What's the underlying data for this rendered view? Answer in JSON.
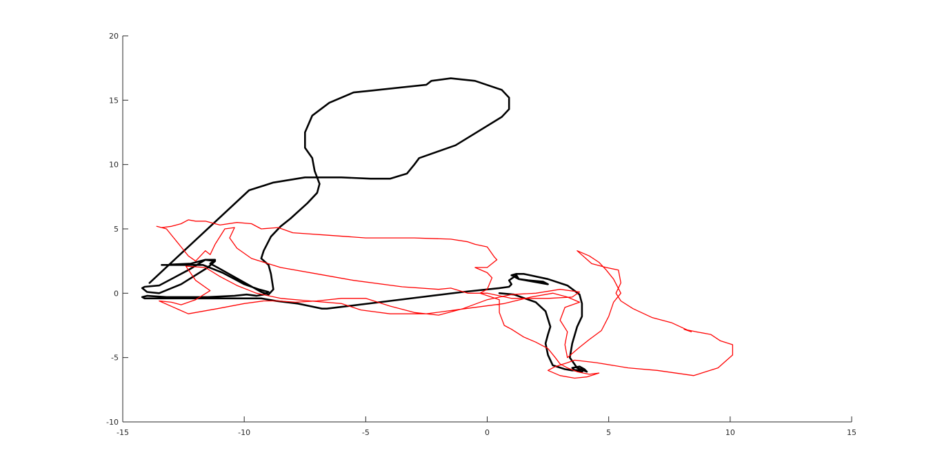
{
  "chart_data": {
    "type": "line",
    "title": "",
    "xlabel": "",
    "ylabel": "",
    "xlim": [
      -15,
      15
    ],
    "ylim": [
      -10,
      20
    ],
    "xticks": [
      -15,
      -10,
      -5,
      0,
      5,
      10,
      15
    ],
    "yticks": [
      -10,
      -5,
      0,
      5,
      10,
      15,
      20
    ],
    "xtick_labels": [
      "-15",
      "-10",
      "-5",
      "0",
      "5",
      "10",
      "15"
    ],
    "ytick_labels": [
      "-10",
      "-5",
      "0",
      "5",
      "10",
      "15",
      "20"
    ],
    "grid": false,
    "legend": "none",
    "series": [
      {
        "color": "#000000",
        "points": [
          [
            -13.9,
            0.8
          ],
          [
            -9.8,
            8.0
          ],
          [
            -8.8,
            8.6
          ],
          [
            -7.5,
            9.0
          ],
          [
            -6.0,
            9.0
          ],
          [
            -4.8,
            8.9
          ],
          [
            -4.0,
            8.9
          ],
          [
            -3.3,
            9.3
          ],
          [
            -3.0,
            10.0
          ],
          [
            -2.8,
            10.5
          ],
          [
            -1.3,
            11.5
          ],
          [
            0.6,
            13.7
          ],
          [
            0.9,
            14.3
          ],
          [
            0.9,
            15.2
          ],
          [
            0.6,
            15.8
          ],
          [
            -0.5,
            16.5
          ],
          [
            -1.5,
            16.7
          ],
          [
            -2.3,
            16.5
          ],
          [
            -2.5,
            16.2
          ],
          [
            -4.5,
            15.8
          ],
          [
            -5.0,
            15.7
          ],
          [
            -5.5,
            15.6
          ],
          [
            -6.5,
            14.8
          ],
          [
            -7.2,
            13.8
          ],
          [
            -7.5,
            12.5
          ],
          [
            -7.5,
            11.3
          ],
          [
            -7.2,
            10.5
          ],
          [
            -7.1,
            9.5
          ],
          [
            -6.9,
            8.5
          ],
          [
            -7.0,
            7.8
          ],
          [
            -7.4,
            7.0
          ],
          [
            -8.1,
            5.8
          ],
          [
            -8.5,
            5.2
          ],
          [
            -8.9,
            4.4
          ],
          [
            -9.2,
            3.3
          ],
          [
            -9.3,
            2.7
          ],
          [
            -9.0,
            2.2
          ],
          [
            -8.9,
            1.5
          ],
          [
            -8.8,
            0.3
          ],
          [
            -9.0,
            -0.1
          ],
          [
            -9.3,
            0.1
          ],
          [
            -11.1,
            2.0
          ],
          [
            -11.4,
            2.3
          ],
          [
            -11.2,
            2.6
          ],
          [
            -11.6,
            2.6
          ],
          [
            -12.3,
            1.8
          ],
          [
            -13.5,
            0.6
          ],
          [
            -14.1,
            0.5
          ],
          [
            -14.2,
            0.4
          ],
          [
            -14.0,
            0.1
          ],
          [
            -13.5,
            0.0
          ],
          [
            -12.6,
            0.7
          ],
          [
            -11.5,
            2.0
          ],
          [
            -11.2,
            2.5
          ],
          [
            -11.6,
            2.6
          ],
          [
            -12.2,
            2.3
          ],
          [
            -13.4,
            2.2
          ],
          [
            -11.7,
            2.2
          ],
          [
            -10.9,
            1.6
          ],
          [
            -10.5,
            1.2
          ],
          [
            -10.0,
            0.7
          ],
          [
            -9.4,
            0.3
          ],
          [
            -9.0,
            0.1
          ],
          [
            -9.2,
            -0.1
          ],
          [
            -9.5,
            -0.2
          ],
          [
            -9.9,
            -0.1
          ],
          [
            -10.4,
            -0.2
          ],
          [
            -11.5,
            -0.3
          ],
          [
            -12.5,
            -0.3
          ],
          [
            -13.2,
            -0.3
          ],
          [
            -14.0,
            -0.2
          ],
          [
            -14.2,
            -0.3
          ],
          [
            -14.1,
            -0.4
          ],
          [
            -13.5,
            -0.4
          ],
          [
            -10.8,
            -0.4
          ],
          [
            -9.5,
            -0.4
          ],
          [
            -9.3,
            -0.4
          ],
          [
            -8.7,
            -0.6
          ],
          [
            -7.8,
            -0.8
          ],
          [
            -7.3,
            -1.0
          ],
          [
            -6.8,
            -1.2
          ],
          [
            -6.6,
            -1.2
          ],
          [
            -4.0,
            -0.6
          ],
          [
            -1.0,
            0.1
          ],
          [
            0.5,
            0.4
          ],
          [
            0.9,
            0.5
          ],
          [
            1.0,
            0.7
          ],
          [
            0.9,
            1.0
          ],
          [
            1.2,
            1.4
          ],
          [
            1.3,
            1.1
          ],
          [
            1.7,
            1.0
          ],
          [
            2.3,
            0.9
          ],
          [
            2.5,
            0.7
          ],
          [
            1.3,
            1.1
          ],
          [
            1.0,
            1.4
          ],
          [
            1.2,
            1.5
          ],
          [
            1.5,
            1.5
          ],
          [
            2.5,
            1.1
          ],
          [
            3.3,
            0.6
          ],
          [
            3.8,
            -0.1
          ],
          [
            3.9,
            -0.8
          ],
          [
            3.9,
            -1.8
          ],
          [
            3.7,
            -2.6
          ],
          [
            3.5,
            -3.9
          ],
          [
            3.4,
            -5.0
          ],
          [
            3.7,
            -5.8
          ],
          [
            4.1,
            -6.1
          ],
          [
            4.0,
            -5.9
          ],
          [
            3.8,
            -5.7
          ],
          [
            3.5,
            -5.8
          ],
          [
            3.6,
            -6.0
          ],
          [
            3.9,
            -6.1
          ],
          [
            4.0,
            -5.9
          ],
          [
            3.5,
            -6.0
          ],
          [
            3.2,
            -5.9
          ],
          [
            2.7,
            -5.6
          ],
          [
            2.5,
            -4.8
          ],
          [
            2.4,
            -3.9
          ],
          [
            2.5,
            -3.2
          ],
          [
            2.6,
            -2.6
          ],
          [
            2.4,
            -1.4
          ],
          [
            2.0,
            -0.7
          ],
          [
            1.1,
            -0.1
          ],
          [
            0.5,
            0.0
          ]
        ]
      },
      {
        "color": "#ff0000",
        "points": [
          [
            -13.4,
            5.1
          ],
          [
            -13.0,
            5.2
          ],
          [
            -12.6,
            5.4
          ],
          [
            -12.3,
            5.7
          ],
          [
            -12.0,
            5.6
          ],
          [
            -11.6,
            5.6
          ],
          [
            -11.0,
            5.3
          ],
          [
            -10.3,
            5.5
          ],
          [
            -9.7,
            5.4
          ],
          [
            -9.3,
            5.0
          ],
          [
            -8.6,
            5.1
          ],
          [
            -8.0,
            4.7
          ],
          [
            -6.5,
            4.5
          ],
          [
            -5.0,
            4.3
          ],
          [
            -3.0,
            4.3
          ],
          [
            -1.5,
            4.2
          ],
          [
            -0.8,
            4.0
          ],
          [
            -0.5,
            3.8
          ],
          [
            0.0,
            3.6
          ],
          [
            0.3,
            2.8
          ],
          [
            0.4,
            2.6
          ],
          [
            0.2,
            2.3
          ],
          [
            0.0,
            2.0
          ],
          [
            -0.5,
            2.0
          ],
          [
            0.0,
            1.6
          ],
          [
            0.2,
            1.2
          ],
          [
            0.0,
            0.3
          ],
          [
            -0.3,
            0.0
          ],
          [
            0.5,
            -0.5
          ],
          [
            0.5,
            -1.5
          ],
          [
            0.7,
            -2.5
          ],
          [
            1.0,
            -2.8
          ],
          [
            1.5,
            -3.4
          ],
          [
            2.0,
            -3.8
          ],
          [
            2.5,
            -4.3
          ],
          [
            2.8,
            -5.0
          ],
          [
            3.0,
            -5.5
          ],
          [
            3.3,
            -5.8
          ],
          [
            3.7,
            -6.1
          ],
          [
            4.2,
            -6.3
          ],
          [
            4.6,
            -6.2
          ],
          [
            4.1,
            -6.5
          ],
          [
            3.6,
            -6.6
          ],
          [
            3.0,
            -6.4
          ],
          [
            2.5,
            -6.0
          ],
          [
            2.8,
            -5.7
          ],
          [
            3.3,
            -5.4
          ],
          [
            3.6,
            -5.2
          ],
          [
            4.5,
            -5.4
          ],
          [
            5.8,
            -5.8
          ],
          [
            7.0,
            -6.0
          ],
          [
            8.5,
            -6.4
          ],
          [
            9.5,
            -5.8
          ],
          [
            10.1,
            -4.8
          ],
          [
            10.1,
            -4.0
          ],
          [
            9.6,
            -3.7
          ],
          [
            9.2,
            -3.2
          ],
          [
            8.6,
            -3.0
          ],
          [
            8.1,
            -2.8
          ],
          [
            8.4,
            -3.0
          ],
          [
            7.6,
            -2.3
          ],
          [
            6.8,
            -1.9
          ],
          [
            6.0,
            -1.2
          ],
          [
            5.5,
            -0.6
          ],
          [
            5.3,
            0.0
          ],
          [
            5.5,
            0.8
          ],
          [
            5.4,
            1.8
          ],
          [
            4.9,
            2.0
          ],
          [
            4.3,
            2.3
          ],
          [
            3.7,
            3.3
          ],
          [
            4.2,
            2.9
          ],
          [
            4.6,
            2.4
          ],
          [
            4.9,
            1.8
          ],
          [
            5.2,
            1.1
          ],
          [
            5.5,
            0.0
          ],
          [
            5.2,
            -0.7
          ],
          [
            5.0,
            -1.8
          ],
          [
            4.7,
            -2.9
          ],
          [
            4.2,
            -3.6
          ],
          [
            3.8,
            -4.2
          ],
          [
            3.3,
            -5.0
          ],
          [
            3.2,
            -4.0
          ],
          [
            3.3,
            -3.0
          ],
          [
            3.0,
            -2.1
          ],
          [
            3.2,
            -1.1
          ],
          [
            3.8,
            -0.7
          ],
          [
            3.3,
            -0.3
          ],
          [
            2.7,
            0.0
          ],
          [
            1.8,
            -0.3
          ],
          [
            0.7,
            -0.8
          ],
          [
            -0.9,
            -1.2
          ],
          [
            -2.5,
            -1.6
          ],
          [
            -4.0,
            -1.6
          ],
          [
            -5.2,
            -1.3
          ],
          [
            -6.0,
            -0.8
          ],
          [
            -7.3,
            -0.6
          ],
          [
            -8.5,
            -0.4
          ],
          [
            -9.5,
            0.0
          ],
          [
            -10.3,
            0.6
          ],
          [
            -11.0,
            1.3
          ],
          [
            -11.6,
            2.0
          ],
          [
            -12.4,
            2.1
          ],
          [
            -12.0,
            1.0
          ],
          [
            -11.4,
            0.2
          ],
          [
            -12.0,
            -0.5
          ],
          [
            -12.6,
            -0.9
          ],
          [
            -13.0,
            -0.7
          ],
          [
            -13.5,
            -0.6
          ],
          [
            -12.3,
            -1.6
          ],
          [
            -11.1,
            -1.2
          ],
          [
            -10.0,
            -0.8
          ],
          [
            -9.2,
            -0.6
          ],
          [
            -8.6,
            -0.6
          ],
          [
            -7.9,
            -0.7
          ],
          [
            -7.0,
            -0.6
          ],
          [
            -6.0,
            -0.4
          ],
          [
            -5.0,
            -0.4
          ],
          [
            -4.0,
            -1.0
          ],
          [
            -3.0,
            -1.5
          ],
          [
            -2.0,
            -1.7
          ],
          [
            -1.0,
            -1.2
          ],
          [
            0.0,
            -0.5
          ],
          [
            1.0,
            -0.1
          ],
          [
            2.0,
            0.0
          ],
          [
            3.0,
            0.3
          ],
          [
            3.8,
            0.1
          ],
          [
            3.5,
            -0.3
          ],
          [
            2.5,
            -0.4
          ],
          [
            1.0,
            -0.4
          ],
          [
            0.0,
            0.0
          ],
          [
            -0.8,
            0.0
          ],
          [
            -1.5,
            0.4
          ],
          [
            -2.0,
            0.3
          ],
          [
            -3.5,
            0.5
          ],
          [
            -5.5,
            1.0
          ],
          [
            -7.0,
            1.5
          ],
          [
            -8.5,
            2.0
          ],
          [
            -9.7,
            2.7
          ],
          [
            -10.3,
            3.5
          ],
          [
            -10.6,
            4.3
          ],
          [
            -10.4,
            5.1
          ],
          [
            -10.8,
            5.0
          ],
          [
            -11.2,
            3.8
          ],
          [
            -11.4,
            3.0
          ],
          [
            -11.6,
            3.3
          ],
          [
            -12.0,
            2.5
          ],
          [
            -12.3,
            2.9
          ],
          [
            -12.6,
            3.6
          ],
          [
            -12.9,
            4.3
          ],
          [
            -13.2,
            5.0
          ],
          [
            -13.6,
            5.2
          ]
        ]
      }
    ]
  }
}
